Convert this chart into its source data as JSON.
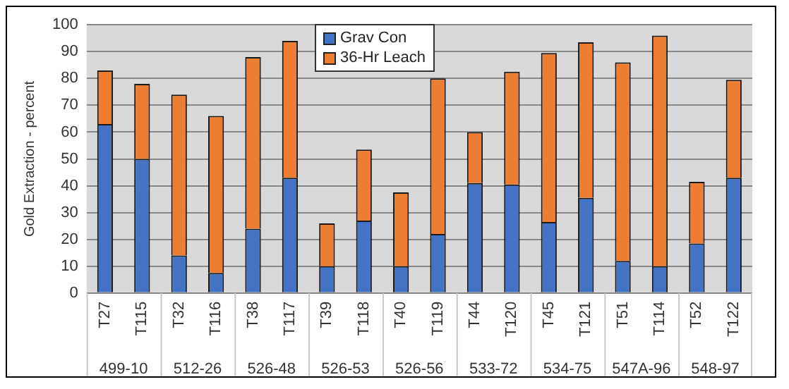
{
  "chart_data": {
    "type": "bar",
    "stacked": true,
    "ylabel": "Gold Extraction - percent",
    "categories": [
      "T27",
      "T115",
      "T32",
      "T116",
      "T38",
      "T117",
      "T39",
      "T118",
      "T40",
      "T119",
      "T44",
      "T120",
      "T45",
      "T121",
      "T51",
      "T114",
      "T52",
      "T122"
    ],
    "series": [
      {
        "name": "Grav Con",
        "color": "#4472c4",
        "values": [
          63,
          50,
          14,
          7.5,
          24,
          43,
          10,
          27,
          10,
          22,
          41,
          40.5,
          26.5,
          35.5,
          12,
          10,
          18.5,
          43
        ]
      },
      {
        "name": "36-Hr Leach",
        "color": "#ed7d31",
        "values": [
          20,
          28,
          60,
          58.5,
          64,
          51,
          16,
          26.5,
          27.5,
          58,
          19,
          42,
          63,
          58,
          74,
          86,
          23,
          36.5
        ]
      }
    ],
    "annotations": [
      "499-10",
      "512-26",
      "526-48",
      "526-53",
      "526-56",
      "533-72",
      "534-75",
      "547A-96",
      "548-97"
    ],
    "ylim": [
      0,
      100
    ],
    "yticks": [
      0,
      10,
      20,
      30,
      40,
      50,
      60,
      70,
      80,
      90,
      100
    ],
    "grid": "y",
    "legend": "top"
  }
}
